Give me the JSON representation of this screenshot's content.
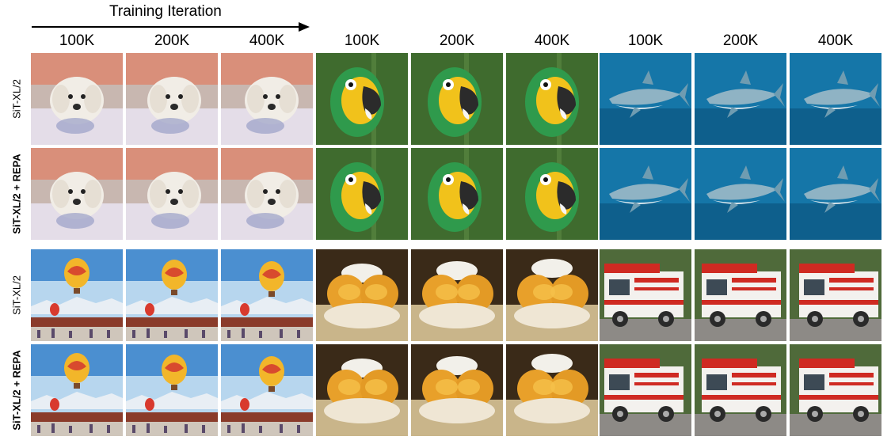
{
  "figure": {
    "axis_title": "Training Iteration",
    "column_labels": [
      "100K",
      "200K",
      "400K",
      "100K",
      "200K",
      "400K",
      "100K",
      "200K",
      "400K"
    ],
    "row_labels": [
      "SiT-XL/2",
      "SiT-XL/2 + REPA",
      "SiT-XL/2",
      "SiT-XL/2 + REPA"
    ],
    "image_grid": [
      [
        "dog",
        "dog",
        "dog",
        "parrot",
        "parrot",
        "parrot",
        "shark",
        "shark",
        "shark"
      ],
      [
        "dog",
        "dog",
        "dog",
        "parrot",
        "parrot",
        "parrot",
        "shark",
        "shark",
        "shark"
      ],
      [
        "balloon",
        "balloon",
        "balloon",
        "burger",
        "burger",
        "burger",
        "firetruck",
        "firetruck",
        "firetruck"
      ],
      [
        "balloon",
        "balloon",
        "balloon",
        "burger",
        "burger",
        "burger",
        "firetruck",
        "firetruck",
        "firetruck"
      ]
    ]
  }
}
